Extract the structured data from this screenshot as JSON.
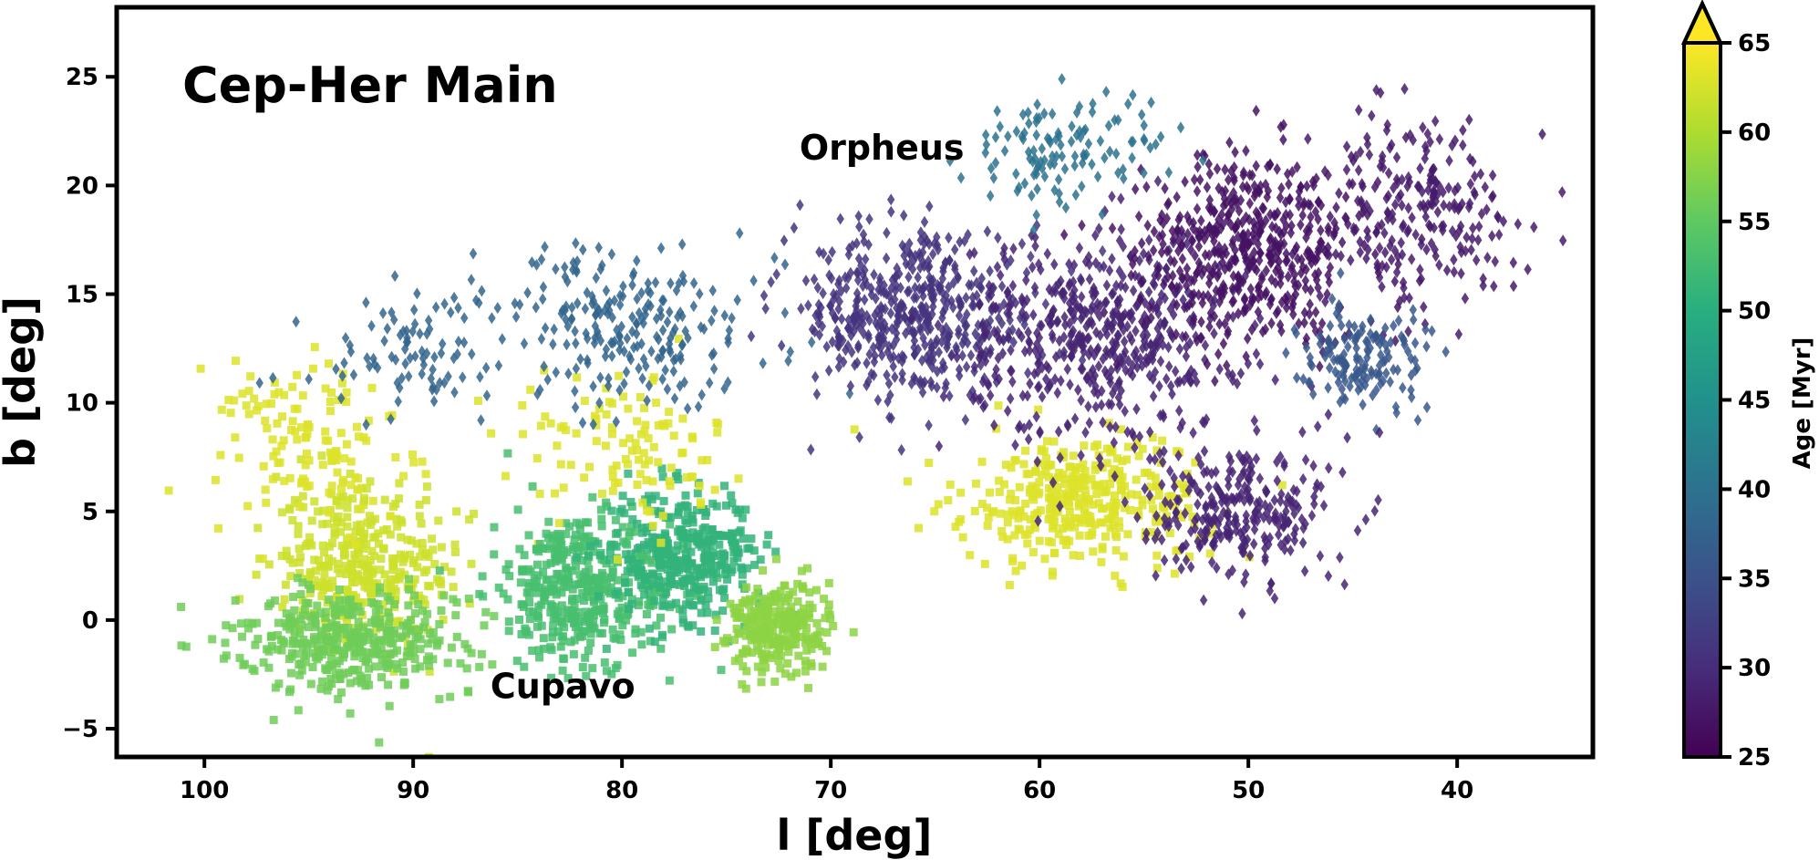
{
  "chart_data": {
    "type": "scatter",
    "title": "Cep-Her Main",
    "xlabel": "l [deg]",
    "ylabel": "b [deg]",
    "xlim": [
      104.2,
      33.5
    ],
    "ylim": [
      -6.3,
      28.2
    ],
    "x_ticks": [
      100,
      90,
      80,
      70,
      60,
      50,
      40
    ],
    "y_ticks": [
      -5,
      0,
      5,
      10,
      15,
      20,
      25
    ],
    "x_tick_labels": [
      "100",
      "90",
      "80",
      "70",
      "60",
      "50",
      "40"
    ],
    "y_tick_labels": [
      "−5",
      "0",
      "5",
      "10",
      "15",
      "20",
      "25"
    ],
    "grid": false,
    "annotations": [
      {
        "text": "Orpheus",
        "l": 71.5,
        "b": 21.2
      },
      {
        "text": "Cupavo",
        "l": 86.3,
        "b": -3.6
      }
    ],
    "colorbar": {
      "label": "Age [Myr]",
      "min": 25,
      "max": 65,
      "ticks": [
        25,
        30,
        35,
        40,
        45,
        50,
        55,
        60,
        65
      ],
      "tick_labels": [
        "25",
        "30",
        "35",
        "40",
        "45",
        "50",
        "55",
        "60",
        "65"
      ],
      "extend": "max",
      "colormap": "viridis"
    },
    "series": [
      {
        "name": "Cupavo (squares)",
        "marker": "square",
        "clusters": [
          {
            "l_center": 92.5,
            "b_center": 2.5,
            "l_spread": 3.5,
            "b_spread": 3.5,
            "age_myr": 62,
            "count": 360
          },
          {
            "l_center": 95.0,
            "b_center": 8.0,
            "l_spread": 4.0,
            "b_spread": 3.0,
            "age_myr": 63,
            "count": 130
          },
          {
            "l_center": 93.0,
            "b_center": -1.0,
            "l_spread": 4.5,
            "b_spread": 2.0,
            "age_myr": 56,
            "count": 380
          },
          {
            "l_center": 82.0,
            "b_center": 1.5,
            "l_spread": 3.5,
            "b_spread": 3.0,
            "age_myr": 53,
            "count": 420
          },
          {
            "l_center": 77.0,
            "b_center": 3.0,
            "l_spread": 3.0,
            "b_spread": 2.5,
            "age_myr": 51,
            "count": 360
          },
          {
            "l_center": 72.5,
            "b_center": -0.3,
            "l_spread": 2.0,
            "b_spread": 1.8,
            "age_myr": 58,
            "count": 260
          },
          {
            "l_center": 80.0,
            "b_center": 8.0,
            "l_spread": 4.0,
            "b_spread": 3.0,
            "age_myr": 63,
            "count": 110
          },
          {
            "l_center": 58.0,
            "b_center": 5.5,
            "l_spread": 5.0,
            "b_spread": 2.5,
            "age_myr": 63,
            "count": 360
          }
        ]
      },
      {
        "name": "Orpheus (diamonds)",
        "marker": "diamond",
        "clusters": [
          {
            "l_center": 80.0,
            "b_center": 13.5,
            "l_spread": 6.0,
            "b_spread": 3.0,
            "age_myr": 38,
            "count": 240
          },
          {
            "l_center": 90.0,
            "b_center": 12.0,
            "l_spread": 5.0,
            "b_spread": 2.5,
            "age_myr": 38,
            "count": 80
          },
          {
            "l_center": 66.0,
            "b_center": 14.0,
            "l_spread": 5.0,
            "b_spread": 3.0,
            "age_myr": 31,
            "count": 520
          },
          {
            "l_center": 57.0,
            "b_center": 13.0,
            "l_spread": 5.0,
            "b_spread": 4.0,
            "age_myr": 29,
            "count": 520
          },
          {
            "l_center": 50.0,
            "b_center": 17.0,
            "l_spread": 4.5,
            "b_spread": 3.5,
            "age_myr": 27,
            "count": 520
          },
          {
            "l_center": 42.0,
            "b_center": 19.0,
            "l_spread": 4.0,
            "b_spread": 3.5,
            "age_myr": 28,
            "count": 240
          },
          {
            "l_center": 44.5,
            "b_center": 12.0,
            "l_spread": 2.5,
            "b_spread": 2.0,
            "age_myr": 36,
            "count": 150
          },
          {
            "l_center": 50.5,
            "b_center": 5.0,
            "l_spread": 3.5,
            "b_spread": 2.8,
            "age_myr": 29,
            "count": 280
          },
          {
            "l_center": 59.0,
            "b_center": 21.5,
            "l_spread": 4.0,
            "b_spread": 2.5,
            "age_myr": 40,
            "count": 120
          }
        ]
      }
    ]
  }
}
